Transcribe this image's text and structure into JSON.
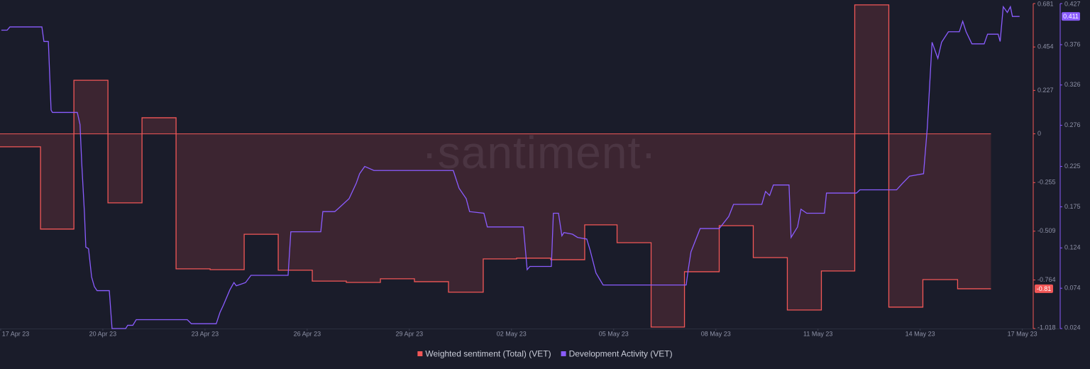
{
  "chart_data": {
    "type": "line",
    "watermark": "·santiment·",
    "xlim": [
      -0.02,
      30.3
    ],
    "xticks": [
      {
        "value": 0,
        "label": "17 Apr 23"
      },
      {
        "value": 3,
        "label": "20 Apr 23"
      },
      {
        "value": 6,
        "label": "23 Apr 23"
      },
      {
        "value": 9,
        "label": "26 Apr 23"
      },
      {
        "value": 12,
        "label": "29 Apr 23"
      },
      {
        "value": 15,
        "label": "02 May 23"
      },
      {
        "value": 18,
        "label": "05 May 23"
      },
      {
        "value": 21,
        "label": "08 May 23"
      },
      {
        "value": 24,
        "label": "11 May 23"
      },
      {
        "value": 27,
        "label": "14 May 23"
      },
      {
        "value": 30,
        "label": "17 May 23"
      }
    ],
    "ylim": [
      -1.018,
      0.681
    ],
    "yticks": [
      -1.018,
      -0.764,
      -0.509,
      -0.255,
      0,
      0.227,
      0.454,
      0.681
    ],
    "y2lim": [
      0.024,
      0.427
    ],
    "y2ticks": [
      0.024,
      0.074,
      0.124,
      0.175,
      0.225,
      0.276,
      0.326,
      0.376,
      0.427
    ],
    "grid": false,
    "legend": "bottom",
    "series": [
      {
        "name": "Weighted sentiment (Total) (VET)",
        "color": "#f25757",
        "step": true,
        "area": true,
        "x": [
          1.17,
          2.15,
          3.15,
          4.15,
          5.15,
          6.15,
          7.15,
          8.15,
          9.15,
          10.15,
          11.15,
          12.15,
          13.15,
          14.17,
          15.15,
          16.15,
          17.15,
          18.1,
          19.1,
          20.08,
          21.1,
          22.1,
          23.1,
          24.1,
          25.08,
          26.08,
          27.08,
          28.1,
          29.08
        ],
        "values": [
          -0.068,
          -0.498,
          0.28,
          -0.361,
          0.084,
          -0.706,
          -0.71,
          -0.525,
          -0.713,
          -0.77,
          -0.777,
          -0.758,
          -0.773,
          -0.828,
          -0.654,
          -0.65,
          -0.658,
          -0.476,
          -0.569,
          -1.01,
          -0.721,
          -0.48,
          -0.647,
          -0.921,
          -0.717,
          0.674,
          -0.906,
          -0.762,
          -0.81
        ]
      },
      {
        "name": "Development Activity (VET)",
        "color": "#8a5cff",
        "axis": "y2",
        "x": [
          0.02,
          0.19,
          0.27,
          1.21,
          1.27,
          1.4,
          1.48,
          1.52,
          2.25,
          2.33,
          2.38,
          2.46,
          2.5,
          2.58,
          2.67,
          2.75,
          2.83,
          3.19,
          3.27,
          3.67,
          3.73,
          3.88,
          3.98,
          5.48,
          5.6,
          6.33,
          6.44,
          6.54,
          6.73,
          6.85,
          6.92,
          7.19,
          7.35,
          8.44,
          8.52,
          9.4,
          9.46,
          9.81,
          9.92,
          10.23,
          10.44,
          10.54,
          10.69,
          10.96,
          13.29,
          13.46,
          13.67,
          13.77,
          14.19,
          14.29,
          15.35,
          15.46,
          15.54,
          16.17,
          16.23,
          16.38,
          16.48,
          16.54,
          16.79,
          16.94,
          17.21,
          17.31,
          17.48,
          17.69,
          20.13,
          20.19,
          20.27,
          20.54,
          21.1,
          21.38,
          21.52,
          22.35,
          22.46,
          22.58,
          22.69,
          23.15,
          23.21,
          23.4,
          23.5,
          23.67,
          24.19,
          24.25,
          25.13,
          25.23,
          26.31,
          26.48,
          26.69,
          27.1,
          27.21,
          27.35,
          27.52,
          27.63,
          27.83,
          28.15,
          28.25,
          28.35,
          28.52,
          28.88,
          28.98,
          29.29,
          29.35,
          29.44,
          29.56,
          29.65,
          29.71,
          29.92
        ],
        "values": [
          0.394,
          0.394,
          0.398,
          0.398,
          0.38,
          0.38,
          0.295,
          0.292,
          0.292,
          0.277,
          0.229,
          0.167,
          0.125,
          0.123,
          0.088,
          0.076,
          0.071,
          0.071,
          0.024,
          0.024,
          0.028,
          0.028,
          0.035,
          0.035,
          0.03,
          0.03,
          0.044,
          0.053,
          0.072,
          0.081,
          0.077,
          0.081,
          0.09,
          0.09,
          0.144,
          0.144,
          0.169,
          0.169,
          0.173,
          0.185,
          0.204,
          0.216,
          0.225,
          0.22,
          0.22,
          0.198,
          0.185,
          0.169,
          0.167,
          0.15,
          0.15,
          0.097,
          0.101,
          0.101,
          0.167,
          0.167,
          0.139,
          0.143,
          0.141,
          0.137,
          0.135,
          0.121,
          0.093,
          0.078,
          0.078,
          0.097,
          0.119,
          0.148,
          0.148,
          0.163,
          0.178,
          0.178,
          0.194,
          0.189,
          0.202,
          0.202,
          0.137,
          0.15,
          0.172,
          0.167,
          0.167,
          0.192,
          0.192,
          0.196,
          0.196,
          0.204,
          0.213,
          0.216,
          0.273,
          0.379,
          0.359,
          0.379,
          0.392,
          0.392,
          0.405,
          0.392,
          0.377,
          0.377,
          0.389,
          0.389,
          0.38,
          0.423,
          0.416,
          0.423,
          0.411,
          0.411
        ]
      }
    ]
  }
}
